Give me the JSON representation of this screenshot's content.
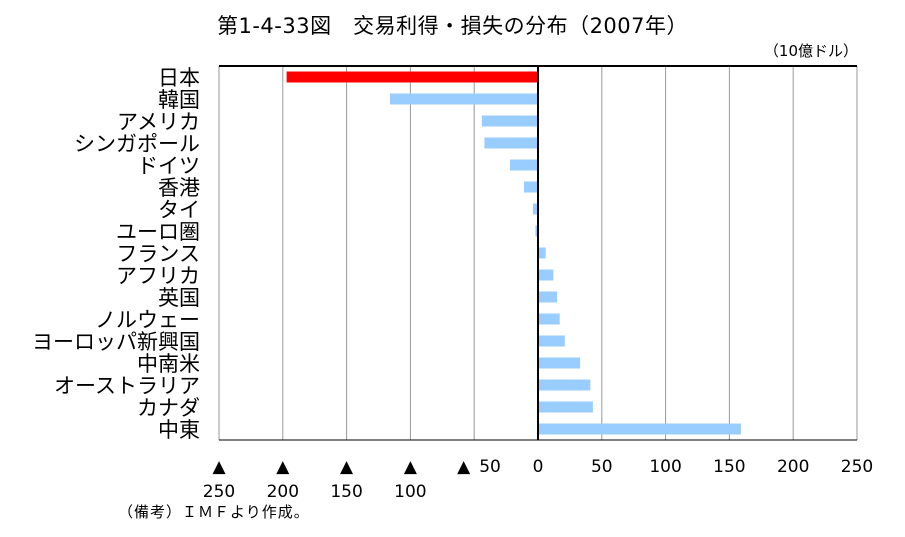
{
  "title": "第1-4-33図　交易利得・損失の分布（2007年）",
  "unit": "（10億ドル）",
  "note": "（備考）ＩＭＦより作成。",
  "colors": {
    "highlight": "#ff0000",
    "bar": "#99ccff",
    "axis": "#000000",
    "grid": "#999999"
  },
  "chart_data": {
    "type": "bar",
    "orientation": "horizontal",
    "categories": [
      "日本",
      "韓国",
      "アメリカ",
      "シンガポール",
      "ドイツ",
      "香港",
      "タイ",
      "ユーロ圏",
      "フランス",
      "アフリカ",
      "英国",
      "ノルウェー",
      "ヨーロッパ新興国",
      "中南米",
      "オーストラリア",
      "カナダ",
      "中東"
    ],
    "values": [
      -197,
      -116,
      -44,
      -42,
      -22,
      -11,
      -4,
      -2,
      6,
      12,
      15,
      17,
      21,
      33,
      41,
      43,
      159
    ],
    "highlight_index": 0,
    "xlim": [
      -250,
      250
    ],
    "xticks": [
      -250,
      -200,
      -150,
      -100,
      -50,
      0,
      50,
      100,
      150,
      200,
      250
    ],
    "xtick_labels": [
      {
        "marker": "▲",
        "number": "250"
      },
      {
        "marker": "▲",
        "number": "200"
      },
      {
        "marker": "▲",
        "number": "150"
      },
      {
        "marker": "▲",
        "number": "100"
      },
      {
        "marker": "▲",
        "number": "50"
      },
      {
        "marker": "",
        "number": "0"
      },
      {
        "marker": "",
        "number": "50"
      },
      {
        "marker": "",
        "number": "100"
      },
      {
        "marker": "",
        "number": "150"
      },
      {
        "marker": "",
        "number": "200"
      },
      {
        "marker": "",
        "number": "250"
      }
    ],
    "grid": true
  }
}
